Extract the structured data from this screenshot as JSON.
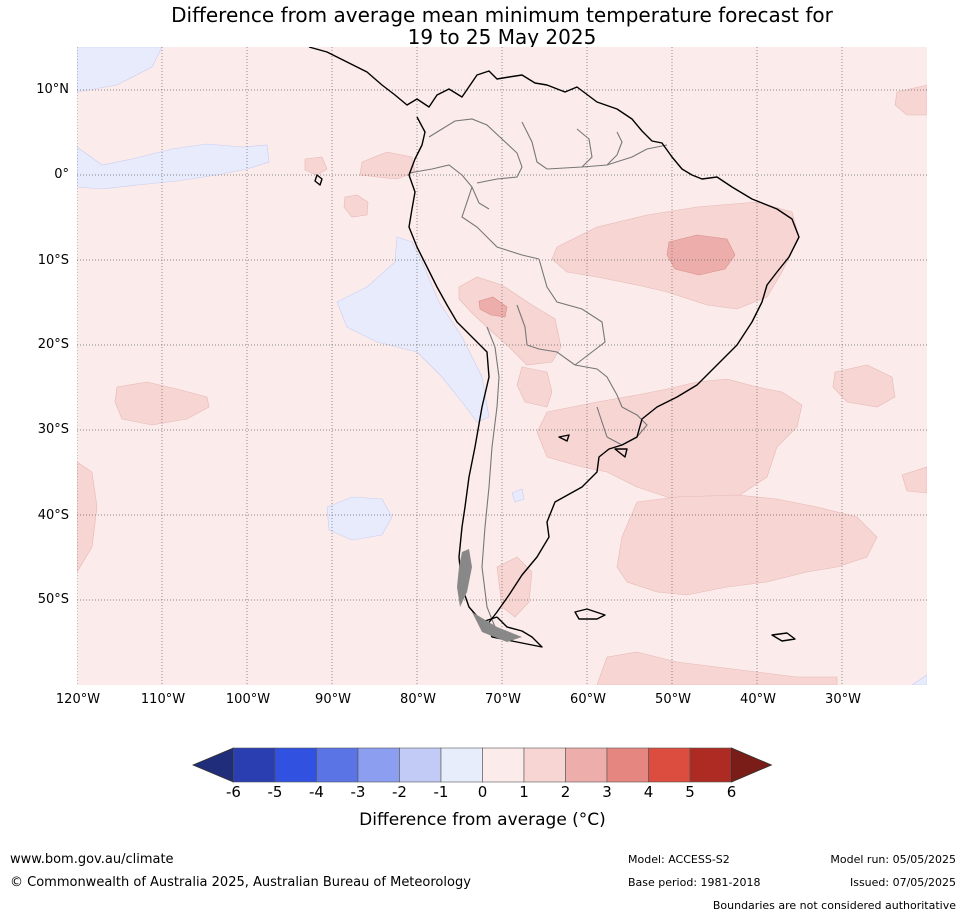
{
  "title": {
    "line1": "Difference from average mean minimum temperature forecast for",
    "line2": "19 to 25 May 2025"
  },
  "map": {
    "lat_labels": [
      "10°N",
      "0°",
      "10°S",
      "20°S",
      "30°S",
      "40°S",
      "50°S"
    ],
    "lon_labels": [
      "120°W",
      "110°W",
      "100°W",
      "90°W",
      "80°W",
      "70°W",
      "60°W",
      "50°W",
      "40°W",
      "30°W"
    ],
    "background_category": "0 to 1",
    "background_color": "#fbeceb"
  },
  "colorbar": {
    "ticks": [
      "-6",
      "-5",
      "-4",
      "-3",
      "-2",
      "-1",
      "0",
      "1",
      "2",
      "3",
      "4",
      "5",
      "6"
    ],
    "colors": [
      "#1f2d7b",
      "#2a3eb1",
      "#3152e0",
      "#5a74e6",
      "#8b9ef0",
      "#c2cbf5",
      "#e8edfb",
      "#fbeceb",
      "#f6d5d3",
      "#edaeab",
      "#e58780",
      "#dc4d3f",
      "#ad2b22",
      "#7a1c17"
    ],
    "label": "Difference from average (°C)"
  },
  "footer": {
    "website": "www.bom.gov.au/climate",
    "copyright": "© Commonwealth of Australia 2025, Australian Bureau of Meteorology",
    "model": "Model: ACCESS-S2",
    "base_period": "Base period: 1981-2018",
    "model_run": "Model run: 05/05/2025",
    "issued": "Issued: 07/05/2025",
    "disclaimer": "Boundaries are not considered authoritative"
  }
}
